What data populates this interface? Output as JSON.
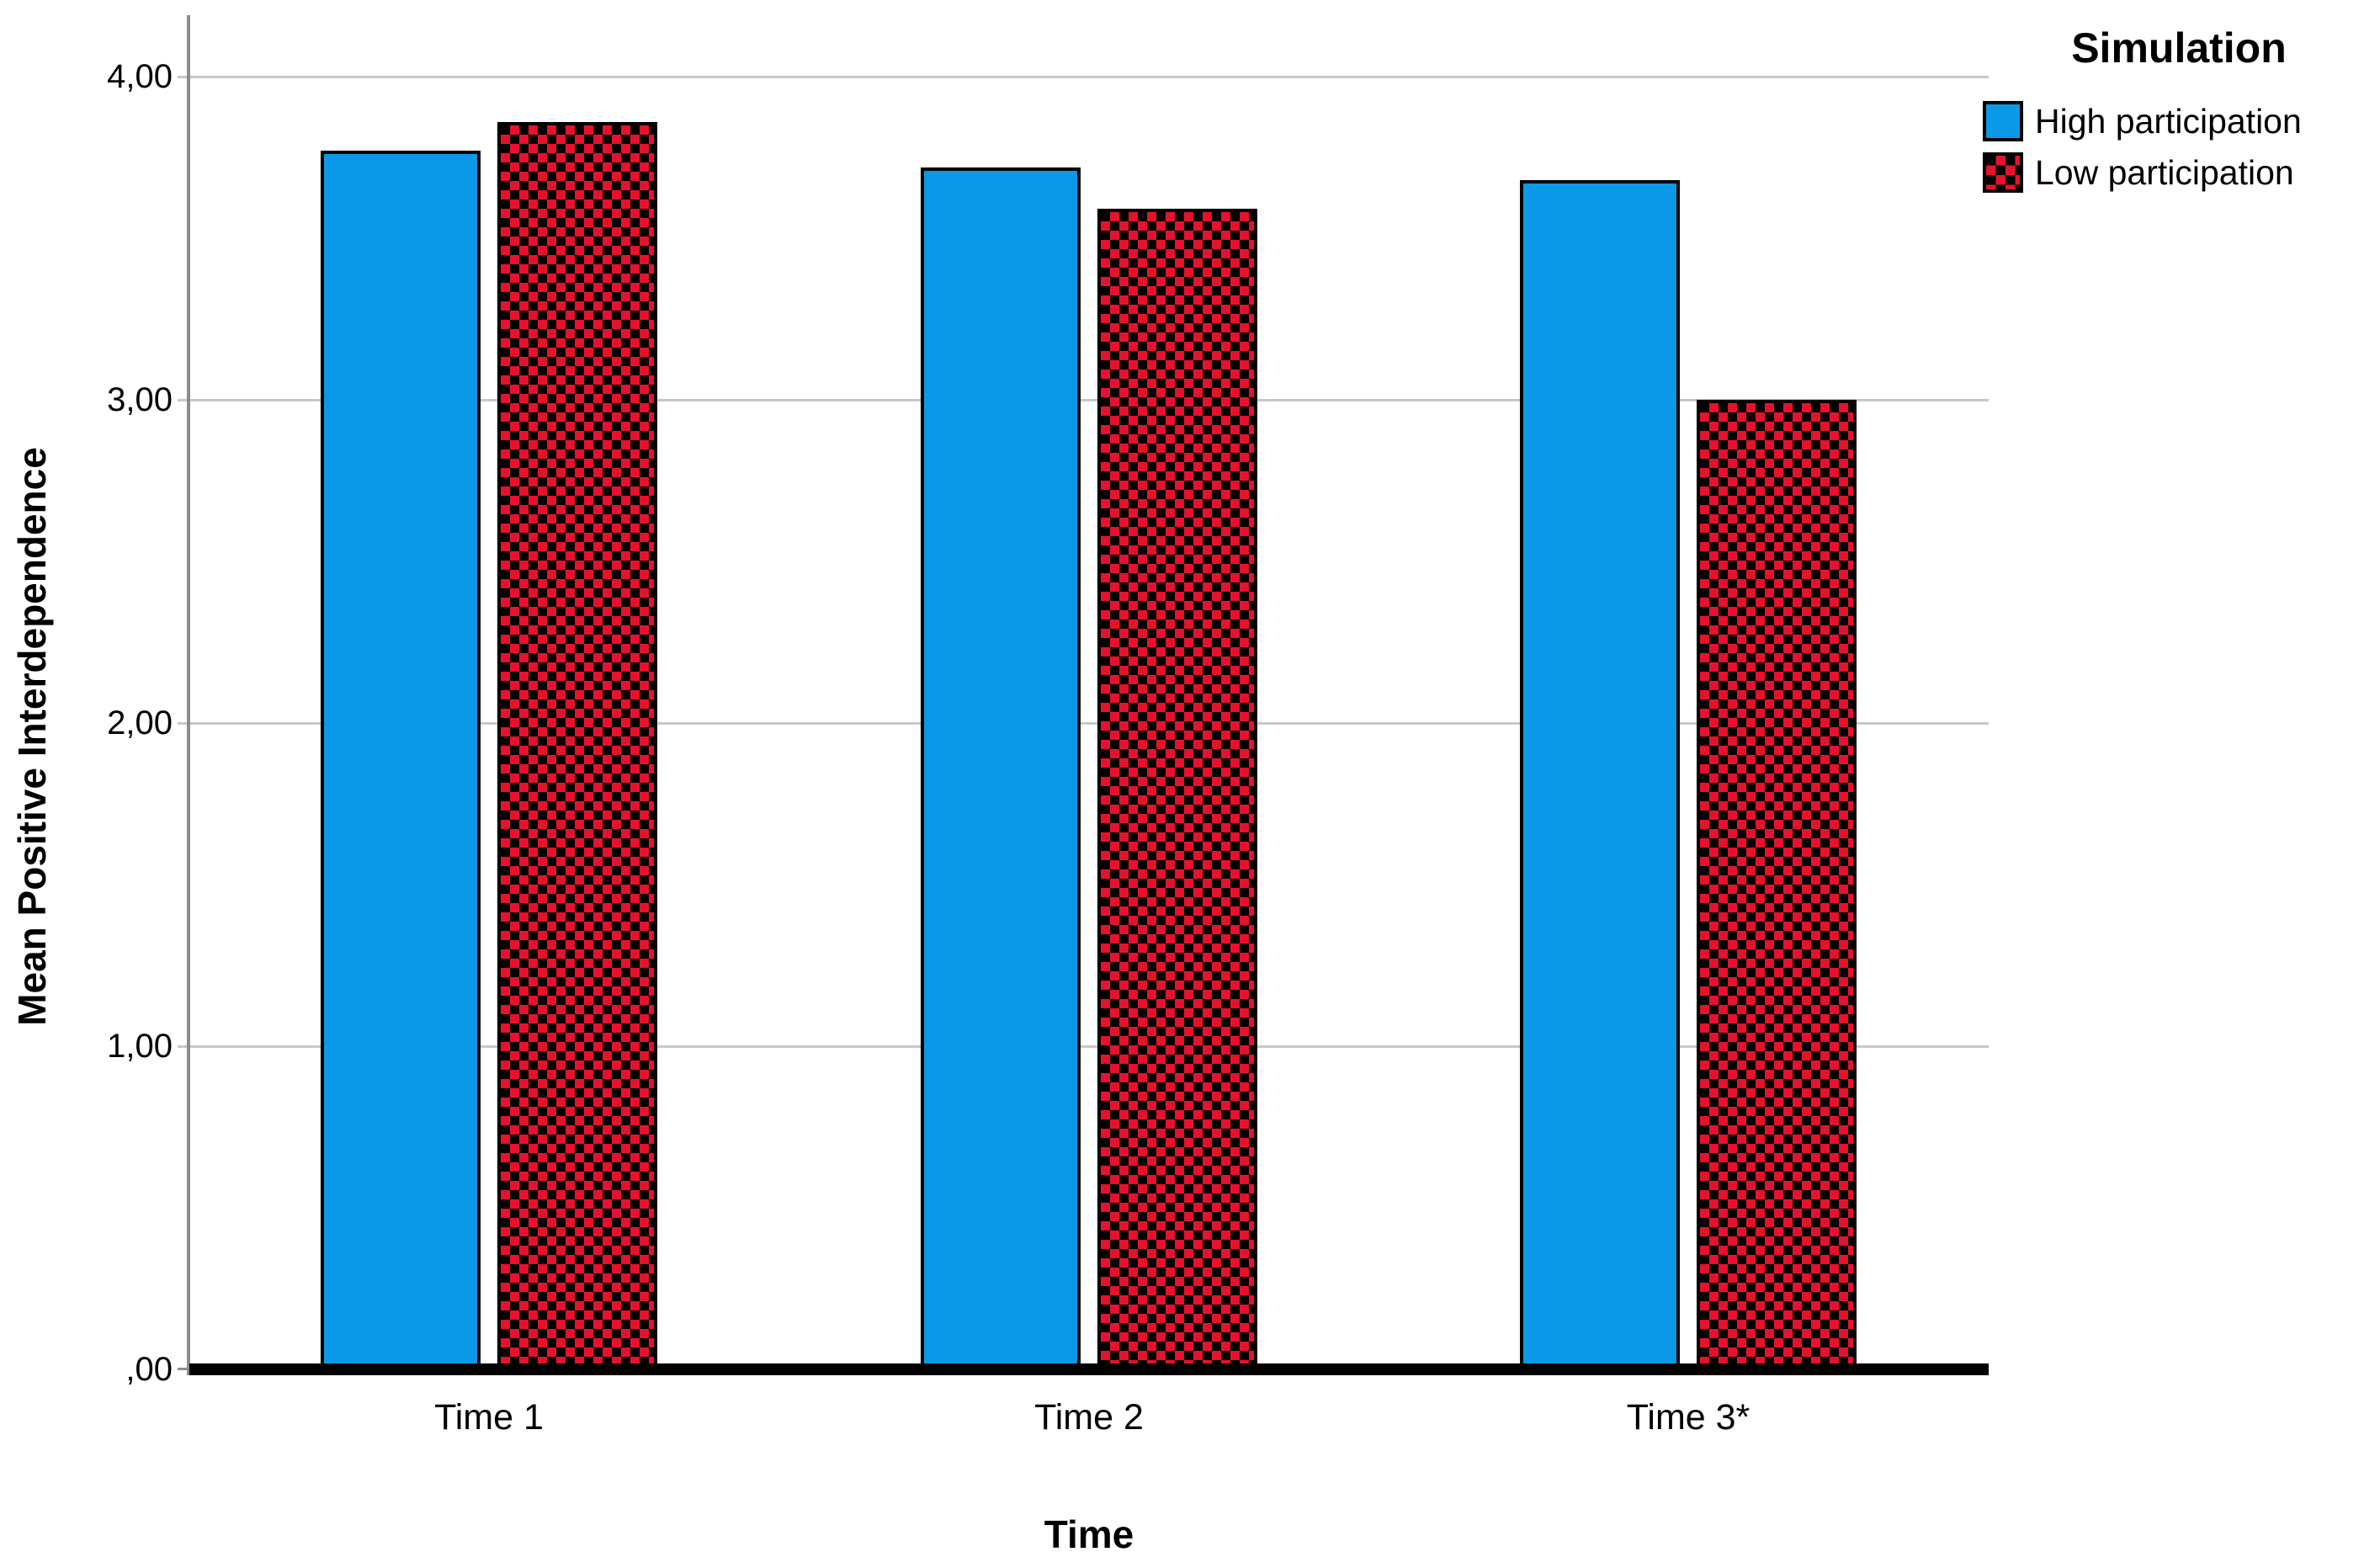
{
  "chart_data": {
    "type": "bar",
    "title": "",
    "categories": [
      "Time 1",
      "Time 2",
      "Time 3*"
    ],
    "series": [
      {
        "name": "High participation",
        "pattern": "solid",
        "values": [
          3.77,
          3.72,
          3.68
        ]
      },
      {
        "name": "Low participation",
        "pattern": "checkerboard",
        "values": [
          3.86,
          3.59,
          3.0
        ]
      }
    ],
    "xlabel": "Time",
    "ylabel": "Mean Positive Interdependence",
    "ylim": [
      0,
      4.2
    ],
    "ytick_values": [
      0,
      1,
      2,
      3,
      4
    ],
    "ytick_labels": [
      ",00",
      "1,00",
      "2,00",
      "3,00",
      "4,00"
    ],
    "grid": true,
    "legend": {
      "title": "Simulation",
      "entries": [
        "High participation",
        "Low participation"
      ],
      "position": "top-right"
    }
  },
  "colors": {
    "high": "#0a99e6",
    "low_red": "#e8112d",
    "low_black": "#000000",
    "grid": "#c8c8c8",
    "axis": "#8c8c8c",
    "baseline": "#000000"
  }
}
